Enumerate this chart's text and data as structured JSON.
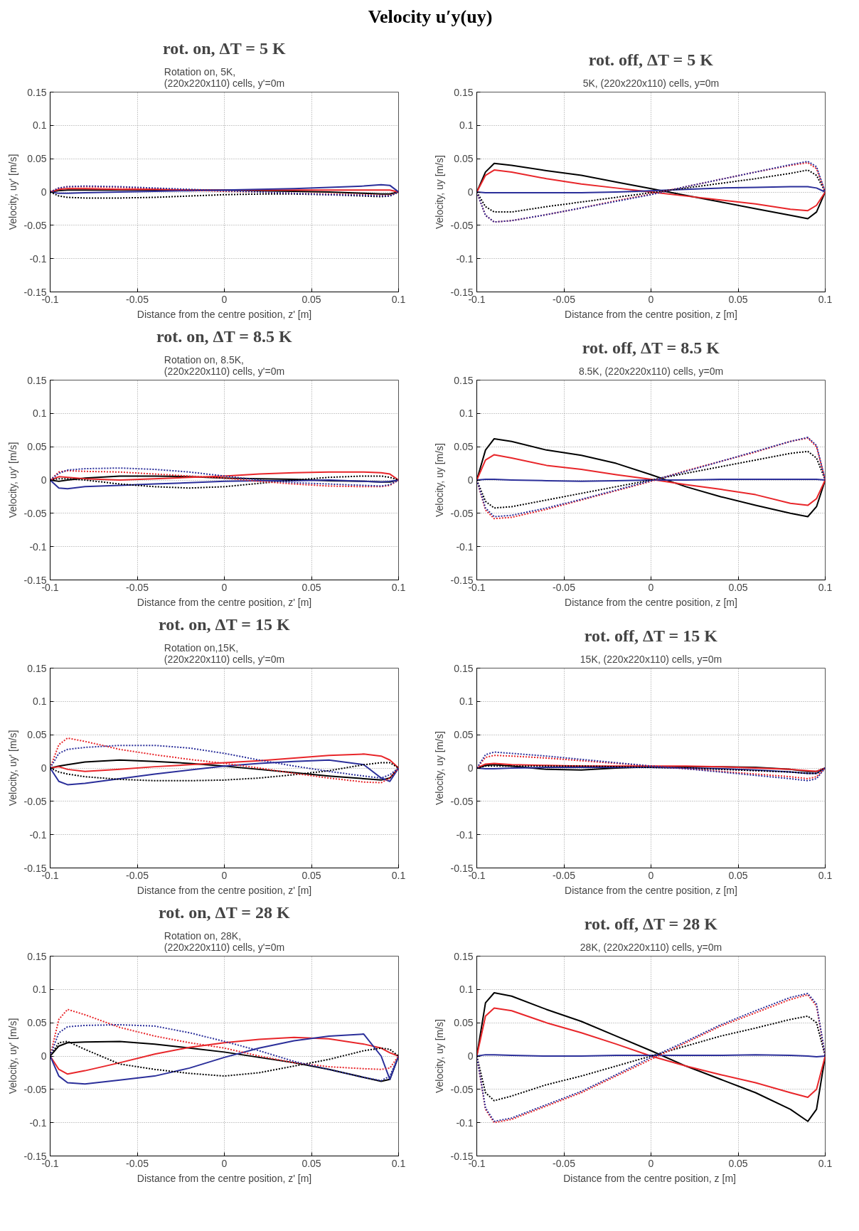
{
  "chart_data": [
    {
      "type": "line",
      "title": "rot. on, ΔT = 5 K",
      "subtitle": "Rotation on, 5K,\n(220x220x110) cells, y'=0m",
      "annotations": [
        "Velocity u′y(uy)"
      ],
      "xlabel": "Distance from the centre position, z' [m]",
      "ylabel": "Velocity, uy' [m/s]",
      "x": [
        -0.1,
        -0.095,
        -0.09,
        -0.08,
        -0.06,
        -0.04,
        -0.02,
        0,
        0.02,
        0.04,
        0.06,
        0.08,
        0.09,
        0.095,
        0.1
      ],
      "xlim": [
        -0.1,
        0.1
      ],
      "ylim": [
        -0.15,
        0.15
      ],
      "xticks": [
        -0.1,
        -0.05,
        0,
        0.05,
        0.1
      ],
      "yticks": [
        -0.15,
        -0.1,
        -0.05,
        0,
        0.05,
        0.1,
        0.15
      ],
      "grid": true,
      "series": [
        {
          "color": "#000000",
          "line_style": "solid",
          "values": [
            0,
            0.002,
            0.003,
            0.003,
            0.003,
            0.003,
            0.003,
            0.003,
            0.002,
            0.001,
            0,
            -0.002,
            -0.003,
            -0.003,
            0
          ]
        },
        {
          "color": "#e8262a",
          "line_style": "solid",
          "values": [
            0,
            0.004,
            0.005,
            0.005,
            0.004,
            0.004,
            0.003,
            0.003,
            0.003,
            0.003,
            0.003,
            0.003,
            0.003,
            0.003,
            0
          ]
        },
        {
          "color": "#2b2f9a",
          "line_style": "solid",
          "values": [
            0,
            -0.002,
            -0.002,
            -0.001,
            0,
            0.001,
            0.002,
            0.003,
            0.004,
            0.005,
            0.007,
            0.009,
            0.011,
            0.01,
            0
          ]
        },
        {
          "color": "#000000",
          "line_style": "dotted",
          "values": [
            0,
            -0.006,
            -0.008,
            -0.009,
            -0.009,
            -0.008,
            -0.006,
            -0.004,
            -0.003,
            -0.003,
            -0.004,
            -0.006,
            -0.007,
            -0.006,
            0
          ]
        },
        {
          "color": "#e8262a",
          "line_style": "dotted",
          "values": [
            0,
            0.006,
            0.008,
            0.008,
            0.007,
            0.005,
            0.003,
            0.001,
            0,
            -0.002,
            -0.003,
            -0.004,
            -0.005,
            -0.005,
            0
          ]
        },
        {
          "color": "#2b2f9a",
          "line_style": "dotted",
          "values": [
            0,
            0.006,
            0.008,
            0.009,
            0.008,
            0.006,
            0.004,
            0.002,
            0,
            -0.002,
            -0.004,
            -0.005,
            -0.006,
            -0.006,
            0
          ]
        }
      ]
    },
    {
      "type": "line",
      "title": "rot. off, ΔT = 5 K",
      "subtitle": "5K, (220x220x110) cells, y=0m",
      "xlabel": "Distance from the centre position, z [m]",
      "ylabel": "Velocity, uy [m/s]",
      "x": [
        -0.1,
        -0.095,
        -0.09,
        -0.08,
        -0.06,
        -0.04,
        -0.02,
        0,
        0.02,
        0.04,
        0.06,
        0.08,
        0.09,
        0.095,
        0.1
      ],
      "xlim": [
        -0.1,
        0.1
      ],
      "ylim": [
        -0.15,
        0.15
      ],
      "xticks": [
        -0.1,
        -0.05,
        0,
        0.05,
        0.1
      ],
      "yticks": [
        -0.15,
        -0.1,
        -0.05,
        0,
        0.05,
        0.1,
        0.15
      ],
      "grid": true,
      "series": [
        {
          "color": "#000000",
          "line_style": "solid",
          "values": [
            0,
            0.03,
            0.043,
            0.04,
            0.032,
            0.025,
            0.015,
            0.005,
            -0.005,
            -0.015,
            -0.025,
            -0.035,
            -0.04,
            -0.03,
            0
          ]
        },
        {
          "color": "#e8262a",
          "line_style": "solid",
          "values": [
            0,
            0.025,
            0.033,
            0.03,
            0.02,
            0.012,
            0.006,
            0,
            -0.006,
            -0.012,
            -0.018,
            -0.026,
            -0.028,
            -0.02,
            0
          ]
        },
        {
          "color": "#2b2f9a",
          "line_style": "solid",
          "values": [
            0,
            -0.001,
            -0.001,
            -0.001,
            -0.001,
            -0.001,
            0,
            0.002,
            0.004,
            0.006,
            0.007,
            0.008,
            0.008,
            0.006,
            0
          ]
        },
        {
          "color": "#000000",
          "line_style": "dotted",
          "values": [
            0,
            -0.022,
            -0.03,
            -0.03,
            -0.022,
            -0.015,
            -0.008,
            -0.001,
            0.006,
            0.013,
            0.02,
            0.028,
            0.033,
            0.025,
            0
          ]
        },
        {
          "color": "#e8262a",
          "line_style": "dotted",
          "values": [
            0,
            -0.035,
            -0.045,
            -0.043,
            -0.034,
            -0.024,
            -0.013,
            -0.003,
            0.008,
            0.019,
            0.03,
            0.04,
            0.044,
            0.035,
            0
          ]
        },
        {
          "color": "#2b2f9a",
          "line_style": "dotted",
          "values": [
            0,
            -0.035,
            -0.045,
            -0.043,
            -0.034,
            -0.024,
            -0.014,
            -0.004,
            0.008,
            0.019,
            0.03,
            0.041,
            0.046,
            0.038,
            0
          ]
        }
      ]
    },
    {
      "type": "line",
      "title": "rot. on, ΔT = 8.5 K",
      "subtitle": "Rotation on, 8.5K,\n(220x220x110) cells, y'=0m",
      "xlabel": "Distance from the centre position, z' [m]",
      "ylabel": "Velocity, uy' [m/s]",
      "x": [
        -0.1,
        -0.095,
        -0.09,
        -0.08,
        -0.06,
        -0.04,
        -0.02,
        0,
        0.02,
        0.04,
        0.06,
        0.08,
        0.09,
        0.095,
        0.1
      ],
      "xlim": [
        -0.1,
        0.1
      ],
      "ylim": [
        -0.15,
        0.15
      ],
      "xticks": [
        -0.1,
        -0.05,
        0,
        0.05,
        0.1
      ],
      "yticks": [
        -0.15,
        -0.1,
        -0.05,
        0,
        0.05,
        0.1,
        0.15
      ],
      "grid": true,
      "series": [
        {
          "color": "#000000",
          "line_style": "solid",
          "values": [
            0,
            -0.002,
            0,
            0.003,
            0.006,
            0.006,
            0.005,
            0.003,
            0.002,
            0.001,
            -0.001,
            -0.002,
            -0.003,
            -0.003,
            0
          ]
        },
        {
          "color": "#e8262a",
          "line_style": "solid",
          "values": [
            0,
            0.005,
            0.004,
            0.002,
            0,
            0.002,
            0.004,
            0.006,
            0.009,
            0.011,
            0.012,
            0.012,
            0.011,
            0.009,
            0
          ]
        },
        {
          "color": "#2b2f9a",
          "line_style": "solid",
          "values": [
            0,
            -0.012,
            -0.013,
            -0.01,
            -0.008,
            -0.006,
            -0.004,
            -0.002,
            -0.001,
            -0.001,
            0,
            -0.002,
            -0.003,
            -0.002,
            0
          ]
        },
        {
          "color": "#000000",
          "line_style": "dotted",
          "values": [
            0,
            0.002,
            0.002,
            0,
            -0.006,
            -0.01,
            -0.012,
            -0.01,
            -0.005,
            0,
            0.004,
            0.006,
            0.006,
            0.004,
            0
          ]
        },
        {
          "color": "#e8262a",
          "line_style": "dotted",
          "values": [
            0,
            0.012,
            0.014,
            0.013,
            0.012,
            0.009,
            0.006,
            0.003,
            -0.002,
            -0.006,
            -0.009,
            -0.01,
            -0.01,
            -0.008,
            0
          ]
        },
        {
          "color": "#2b2f9a",
          "line_style": "dotted",
          "values": [
            0,
            0.01,
            0.015,
            0.017,
            0.018,
            0.016,
            0.012,
            0.006,
            0,
            -0.004,
            -0.006,
            -0.008,
            -0.009,
            -0.007,
            0
          ]
        }
      ]
    },
    {
      "type": "line",
      "title": "rot. off, ΔT = 8.5 K",
      "subtitle": "8.5K, (220x220x110) cells, y=0m",
      "xlabel": "Distance from the centre position, z [m]",
      "ylabel": "Velocity, uy [m/s]",
      "x": [
        -0.1,
        -0.095,
        -0.09,
        -0.08,
        -0.06,
        -0.04,
        -0.02,
        0,
        0.02,
        0.04,
        0.06,
        0.08,
        0.09,
        0.095,
        0.1
      ],
      "xlim": [
        -0.1,
        0.1
      ],
      "ylim": [
        -0.15,
        0.15
      ],
      "xticks": [
        -0.1,
        -0.05,
        0,
        0.05,
        0.1
      ],
      "yticks": [
        -0.15,
        -0.1,
        -0.05,
        0,
        0.05,
        0.1,
        0.15
      ],
      "grid": true,
      "series": [
        {
          "color": "#000000",
          "line_style": "solid",
          "values": [
            0,
            0.045,
            0.062,
            0.058,
            0.045,
            0.037,
            0.025,
            0.008,
            -0.01,
            -0.025,
            -0.038,
            -0.05,
            -0.055,
            -0.04,
            0
          ]
        },
        {
          "color": "#e8262a",
          "line_style": "solid",
          "values": [
            0,
            0.03,
            0.038,
            0.033,
            0.022,
            0.016,
            0.008,
            0.001,
            -0.007,
            -0.014,
            -0.022,
            -0.035,
            -0.038,
            -0.028,
            0
          ]
        },
        {
          "color": "#2b2f9a",
          "line_style": "solid",
          "values": [
            0,
            0.001,
            0.001,
            0,
            -0.001,
            -0.002,
            -0.001,
            0,
            0,
            0.001,
            0.001,
            0.001,
            0.001,
            0.001,
            0
          ]
        },
        {
          "color": "#000000",
          "line_style": "dotted",
          "values": [
            0,
            -0.032,
            -0.042,
            -0.04,
            -0.03,
            -0.02,
            -0.01,
            0,
            0.01,
            0.02,
            0.03,
            0.04,
            0.043,
            0.033,
            0
          ]
        },
        {
          "color": "#e8262a",
          "line_style": "dotted",
          "values": [
            0,
            -0.045,
            -0.058,
            -0.056,
            -0.044,
            -0.03,
            -0.016,
            -0.002,
            0.014,
            0.028,
            0.042,
            0.058,
            0.063,
            0.05,
            0
          ]
        },
        {
          "color": "#2b2f9a",
          "line_style": "dotted",
          "values": [
            0,
            -0.042,
            -0.055,
            -0.053,
            -0.042,
            -0.029,
            -0.015,
            -0.001,
            0.013,
            0.028,
            0.043,
            0.058,
            0.064,
            0.052,
            0
          ]
        }
      ]
    },
    {
      "type": "line",
      "title": "rot. on, ΔT = 15 K",
      "subtitle": "Rotation on,15K,\n(220x220x110) cells, y'=0m",
      "xlabel": "Distance from the centre position, z' [m]",
      "ylabel": "Velocity, uy' [m/s]",
      "x": [
        -0.1,
        -0.095,
        -0.09,
        -0.08,
        -0.06,
        -0.04,
        -0.02,
        0,
        0.02,
        0.04,
        0.06,
        0.08,
        0.09,
        0.095,
        0.1
      ],
      "xlim": [
        -0.1,
        0.1
      ],
      "ylim": [
        -0.15,
        0.15
      ],
      "xticks": [
        -0.1,
        -0.05,
        0,
        0.05,
        0.1
      ],
      "yticks": [
        -0.15,
        -0.1,
        -0.05,
        0,
        0.05,
        0.1,
        0.15
      ],
      "grid": true,
      "series": [
        {
          "color": "#000000",
          "line_style": "solid",
          "values": [
            0,
            0.003,
            0.005,
            0.009,
            0.012,
            0.01,
            0.007,
            0.003,
            -0.002,
            -0.007,
            -0.012,
            -0.016,
            -0.018,
            -0.015,
            0
          ]
        },
        {
          "color": "#e8262a",
          "line_style": "solid",
          "values": [
            0,
            0.002,
            -0.002,
            -0.005,
            -0.002,
            0.002,
            0.005,
            0.008,
            0.011,
            0.015,
            0.019,
            0.021,
            0.018,
            0.012,
            0
          ]
        },
        {
          "color": "#2b2f9a",
          "line_style": "solid",
          "values": [
            0,
            -0.02,
            -0.025,
            -0.023,
            -0.016,
            -0.009,
            -0.003,
            0.003,
            0.007,
            0.01,
            0.012,
            0.005,
            -0.015,
            -0.02,
            0
          ]
        },
        {
          "color": "#000000",
          "line_style": "dotted",
          "values": [
            0,
            -0.006,
            -0.009,
            -0.013,
            -0.017,
            -0.019,
            -0.019,
            -0.018,
            -0.015,
            -0.01,
            -0.004,
            0.005,
            0.008,
            0.008,
            0
          ]
        },
        {
          "color": "#e8262a",
          "line_style": "dotted",
          "values": [
            0,
            0.035,
            0.045,
            0.04,
            0.028,
            0.02,
            0.013,
            0.007,
            0,
            -0.008,
            -0.015,
            -0.021,
            -0.022,
            -0.015,
            0
          ]
        },
        {
          "color": "#2b2f9a",
          "line_style": "dotted",
          "values": [
            0,
            0.022,
            0.028,
            0.031,
            0.034,
            0.034,
            0.03,
            0.022,
            0.012,
            0.003,
            -0.005,
            -0.012,
            -0.015,
            -0.01,
            0
          ]
        }
      ]
    },
    {
      "type": "line",
      "title": "rot. off, ΔT = 15 K",
      "subtitle": "15K, (220x220x110) cells, y=0m",
      "xlabel": "Distance from the centre position, z [m]",
      "ylabel": "Velocity, uy [m/s]",
      "x": [
        -0.1,
        -0.095,
        -0.09,
        -0.08,
        -0.06,
        -0.04,
        -0.02,
        0,
        0.02,
        0.04,
        0.06,
        0.08,
        0.09,
        0.095,
        0.1
      ],
      "xlim": [
        -0.1,
        0.1
      ],
      "ylim": [
        -0.15,
        0.15
      ],
      "xticks": [
        -0.1,
        -0.05,
        0,
        0.05,
        0.1
      ],
      "yticks": [
        -0.15,
        -0.1,
        -0.05,
        0,
        0.05,
        0.1,
        0.15
      ],
      "grid": true,
      "series": [
        {
          "color": "#000000",
          "line_style": "solid",
          "values": [
            0,
            0.004,
            0.005,
            0.003,
            -0.002,
            -0.003,
            0,
            0.002,
            0.002,
            0.002,
            0.001,
            -0.002,
            -0.005,
            -0.005,
            0
          ]
        },
        {
          "color": "#e8262a",
          "line_style": "solid",
          "values": [
            0,
            0.006,
            0.007,
            0.005,
            0.004,
            0.003,
            0.003,
            0.003,
            0.003,
            0.002,
            0,
            -0.002,
            -0.004,
            -0.005,
            0
          ]
        },
        {
          "color": "#2b2f9a",
          "line_style": "solid",
          "values": [
            0,
            -0.001,
            -0.001,
            0,
            0.001,
            0.001,
            0.001,
            0.001,
            0,
            -0.001,
            -0.003,
            -0.006,
            -0.008,
            -0.008,
            0
          ]
        },
        {
          "color": "#000000",
          "line_style": "dotted",
          "values": [
            0,
            0.003,
            0.003,
            0.003,
            0.003,
            0.003,
            0.002,
            0.001,
            0,
            -0.002,
            -0.004,
            -0.006,
            -0.008,
            -0.008,
            0
          ]
        },
        {
          "color": "#e8262a",
          "line_style": "dotted",
          "values": [
            0,
            0.016,
            0.019,
            0.018,
            0.015,
            0.011,
            0.007,
            0.003,
            -0.001,
            -0.005,
            -0.009,
            -0.013,
            -0.016,
            -0.013,
            0
          ]
        },
        {
          "color": "#2b2f9a",
          "line_style": "dotted",
          "values": [
            0,
            0.02,
            0.024,
            0.022,
            0.018,
            0.013,
            0.008,
            0.003,
            -0.001,
            -0.006,
            -0.011,
            -0.016,
            -0.019,
            -0.016,
            0
          ]
        }
      ]
    },
    {
      "type": "line",
      "title": "rot. on, ΔT = 28 K",
      "subtitle": "Rotation on, 28K,\n(220x220x110) cells, y'=0m",
      "xlabel": "Distance from the centre position, z' [m]",
      "ylabel": "Velocity, uy' [m/s]",
      "x": [
        -0.1,
        -0.095,
        -0.09,
        -0.08,
        -0.06,
        -0.04,
        -0.02,
        0,
        0.02,
        0.04,
        0.06,
        0.08,
        0.09,
        0.095,
        0.1
      ],
      "xlim": [
        -0.1,
        0.1
      ],
      "ylim": [
        -0.15,
        0.15
      ],
      "xticks": [
        -0.1,
        -0.05,
        0,
        0.05,
        0.1
      ],
      "yticks": [
        -0.15,
        -0.1,
        -0.05,
        0,
        0.05,
        0.1,
        0.15
      ],
      "grid": true,
      "series": [
        {
          "color": "#000000",
          "line_style": "solid",
          "values": [
            0,
            0.015,
            0.02,
            0.021,
            0.022,
            0.018,
            0.012,
            0.006,
            -0.002,
            -0.01,
            -0.02,
            -0.032,
            -0.038,
            -0.035,
            0
          ]
        },
        {
          "color": "#e8262a",
          "line_style": "solid",
          "values": [
            0,
            -0.02,
            -0.027,
            -0.022,
            -0.01,
            0.003,
            0.013,
            0.02,
            0.025,
            0.028,
            0.026,
            0.018,
            0.012,
            0.005,
            0
          ]
        },
        {
          "color": "#2b2f9a",
          "line_style": "solid",
          "values": [
            0,
            -0.03,
            -0.04,
            -0.042,
            -0.036,
            -0.03,
            -0.018,
            -0.002,
            0.012,
            0.023,
            0.03,
            0.033,
            0.0,
            -0.035,
            0
          ]
        },
        {
          "color": "#000000",
          "line_style": "dotted",
          "values": [
            0,
            0.02,
            0.022,
            0.01,
            -0.012,
            -0.02,
            -0.026,
            -0.03,
            -0.025,
            -0.015,
            -0.005,
            0.008,
            0.012,
            0.01,
            0
          ]
        },
        {
          "color": "#e8262a",
          "line_style": "dotted",
          "values": [
            0,
            0.055,
            0.07,
            0.062,
            0.043,
            0.03,
            0.02,
            0.012,
            0,
            -0.01,
            -0.016,
            -0.019,
            -0.02,
            -0.018,
            0
          ]
        },
        {
          "color": "#2b2f9a",
          "line_style": "dotted",
          "values": [
            0,
            0.035,
            0.044,
            0.046,
            0.047,
            0.045,
            0.035,
            0.022,
            0.008,
            -0.008,
            -0.02,
            -0.032,
            -0.037,
            -0.03,
            0
          ]
        }
      ]
    },
    {
      "type": "line",
      "title": "rot. off, ΔT = 28 K",
      "subtitle": "28K, (220x220x110) cells, y=0m",
      "xlabel": "Distance from the centre position, z  [m]",
      "ylabel": "Velocity, uy [m/s]",
      "x": [
        -0.1,
        -0.095,
        -0.09,
        -0.08,
        -0.06,
        -0.04,
        -0.02,
        0,
        0.02,
        0.04,
        0.06,
        0.08,
        0.09,
        0.095,
        0.1
      ],
      "xlim": [
        -0.1,
        0.1
      ],
      "ylim": [
        -0.15,
        0.15
      ],
      "xticks": [
        -0.1,
        -0.05,
        0,
        0.05,
        0.1
      ],
      "yticks": [
        -0.15,
        -0.1,
        -0.05,
        0,
        0.05,
        0.1,
        0.15
      ],
      "grid": true,
      "series": [
        {
          "color": "#000000",
          "line_style": "solid",
          "values": [
            0,
            0.08,
            0.095,
            0.09,
            0.07,
            0.052,
            0.03,
            0.008,
            -0.015,
            -0.035,
            -0.055,
            -0.08,
            -0.098,
            -0.08,
            0
          ]
        },
        {
          "color": "#e8262a",
          "line_style": "solid",
          "values": [
            0,
            0.06,
            0.072,
            0.068,
            0.05,
            0.035,
            0.018,
            0,
            -0.015,
            -0.028,
            -0.04,
            -0.055,
            -0.062,
            -0.05,
            0
          ]
        },
        {
          "color": "#2b2f9a",
          "line_style": "solid",
          "values": [
            0,
            0.002,
            0.002,
            0.001,
            0,
            0,
            0.001,
            0.001,
            0.001,
            0.001,
            0.002,
            0.001,
            0,
            -0.001,
            0
          ]
        },
        {
          "color": "#000000",
          "line_style": "dotted",
          "values": [
            0,
            -0.055,
            -0.067,
            -0.06,
            -0.043,
            -0.03,
            -0.015,
            0,
            0.015,
            0.03,
            0.042,
            0.055,
            0.06,
            0.05,
            0
          ]
        },
        {
          "color": "#e8262a",
          "line_style": "dotted",
          "values": [
            0,
            -0.08,
            -0.1,
            -0.095,
            -0.075,
            -0.055,
            -0.03,
            -0.005,
            0.02,
            0.045,
            0.065,
            0.085,
            0.092,
            0.075,
            0
          ]
        },
        {
          "color": "#2b2f9a",
          "line_style": "dotted",
          "values": [
            0,
            -0.078,
            -0.098,
            -0.093,
            -0.073,
            -0.053,
            -0.028,
            -0.002,
            0.022,
            0.047,
            0.068,
            0.088,
            0.094,
            0.078,
            0
          ]
        }
      ]
    }
  ]
}
